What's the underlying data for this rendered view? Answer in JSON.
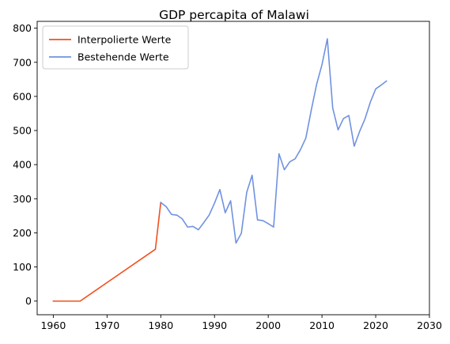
{
  "colors": {
    "interpolated": "#f0501e",
    "existing": "#6f92e0",
    "axis": "#000000",
    "legend_border": "#cccccc"
  },
  "chart_data": {
    "type": "line",
    "title": "GDP percapita of Malawi",
    "xlabel": "",
    "ylabel": "",
    "xlim": [
      1957.0,
      2030.0
    ],
    "ylim": [
      -40,
      820
    ],
    "xticks": [
      1960,
      1970,
      1980,
      1990,
      2000,
      2010,
      2020,
      2030
    ],
    "yticks": [
      0,
      100,
      200,
      300,
      400,
      500,
      600,
      700,
      800
    ],
    "grid": false,
    "legend_position": "top-left",
    "series": [
      {
        "name": "Interpolierte Werte",
        "color_key": "interpolated",
        "x": [
          1960,
          1965,
          1979,
          1980
        ],
        "y": [
          0,
          0,
          152,
          289
        ]
      },
      {
        "name": "Bestehende Werte",
        "color_key": "existing",
        "x": [
          1980,
          1981,
          1982,
          1983,
          1984,
          1985,
          1986,
          1987,
          1988,
          1989,
          1990,
          1991,
          1992,
          1993,
          1994,
          1995,
          1996,
          1997,
          1998,
          1999,
          2000,
          2001,
          2002,
          2003,
          2004,
          2005,
          2006,
          2007,
          2008,
          2009,
          2010,
          2011,
          2012,
          2013,
          2014,
          2015,
          2016,
          2017,
          2018,
          2019,
          2020,
          2021,
          2022
        ],
        "y": [
          289,
          277,
          254,
          252,
          241,
          217,
          219,
          209,
          230,
          252,
          287,
          327,
          259,
          294,
          170,
          199,
          319,
          369,
          238,
          236,
          227,
          217,
          432,
          385,
          408,
          417,
          444,
          478,
          559,
          635,
          693,
          769,
          566,
          502,
          535,
          544,
          454,
          497,
          534,
          583,
          622,
          633,
          645
        ]
      }
    ]
  }
}
